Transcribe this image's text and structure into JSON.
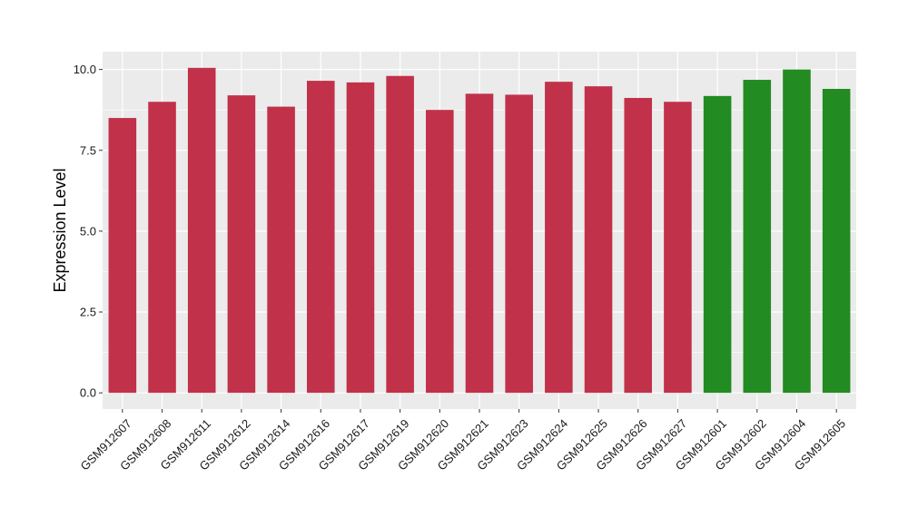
{
  "chart_data": {
    "type": "bar",
    "title": "",
    "xlabel": "",
    "ylabel": "Expression Level",
    "ylim": [
      -0.5,
      10.55
    ],
    "yticks": [
      0.0,
      2.5,
      5.0,
      7.5,
      10.0
    ],
    "ytick_labels": [
      "0.0",
      "2.5",
      "5.0",
      "7.5",
      "10.0"
    ],
    "grid": true,
    "legend": "none",
    "panel_background": "#ebebeb",
    "grid_color": "#ffffff",
    "categories": [
      "GSM912607",
      "GSM912608",
      "GSM912611",
      "GSM912612",
      "GSM912614",
      "GSM912616",
      "GSM912617",
      "GSM912619",
      "GSM912620",
      "GSM912621",
      "GSM912623",
      "GSM912624",
      "GSM912625",
      "GSM912626",
      "GSM912627",
      "GSM912601",
      "GSM912602",
      "GSM912604",
      "GSM912605"
    ],
    "values": [
      8.5,
      9.0,
      10.05,
      9.2,
      8.85,
      9.65,
      9.6,
      9.8,
      8.75,
      9.25,
      9.22,
      9.62,
      9.48,
      9.12,
      9.0,
      9.18,
      9.68,
      10.0,
      9.4
    ],
    "colors": [
      "#c1314a",
      "#c1314a",
      "#c1314a",
      "#c1314a",
      "#c1314a",
      "#c1314a",
      "#c1314a",
      "#c1314a",
      "#c1314a",
      "#c1314a",
      "#c1314a",
      "#c1314a",
      "#c1314a",
      "#c1314a",
      "#c1314a",
      "#228b22",
      "#228b22",
      "#228b22",
      "#228b22"
    ]
  }
}
